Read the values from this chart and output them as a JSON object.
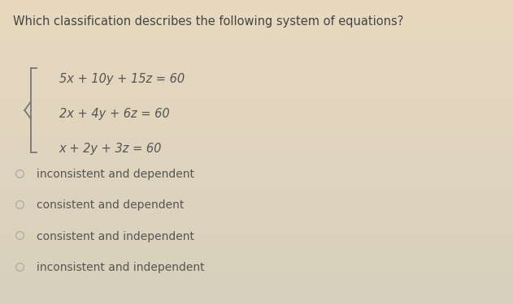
{
  "background_color_top": "#e8d9c0",
  "background_color_bottom": "#ddd5c0",
  "title": "Which classification describes the following system of equations?",
  "title_fontsize": 10.5,
  "title_color": "#444444",
  "equations": [
    "5x + 10y + 15z = 60",
    "2x + 4y + 6z = 60",
    "x + 2y + 3z = 60"
  ],
  "eq_fontsize": 10.5,
  "eq_color": "#555555",
  "choices": [
    "inconsistent and dependent",
    "consistent and dependent",
    "consistent and independent",
    "inconsistent and independent"
  ],
  "choice_fontsize": 10.0,
  "choice_color": "#555555",
  "circle_color": "#aaaaaa",
  "bracket_color": "#777777"
}
